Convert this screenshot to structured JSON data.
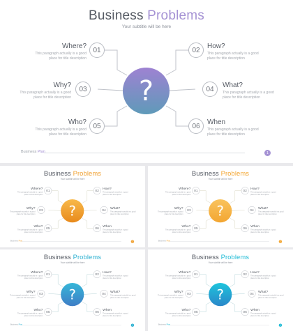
{
  "slides": [
    {
      "variant": "big",
      "color1": "#9e82d2",
      "color2": "#5f9ab9",
      "accent": "#a592d4",
      "line": "#bfc2c9"
    },
    {
      "variant": "s1",
      "color1": "#f8b94a",
      "color2": "#e88a1c",
      "accent": "#f0a234",
      "line": "#d4d6c4"
    },
    {
      "variant": "s2",
      "color1": "#f9c35d",
      "color2": "#f3a632",
      "accent": "#f3a632",
      "line": "#d8d5c0"
    },
    {
      "variant": "s3",
      "color1": "#36b6d8",
      "color2": "#3f7ec6",
      "accent": "#2fb2d2",
      "line": "#b9d4d8"
    },
    {
      "variant": "s4",
      "color1": "#1ec4dc",
      "color2": "#2a87c9",
      "accent": "#22bcd6",
      "line": "#b4d3d9"
    }
  ],
  "deck": {
    "title_a": "Business ",
    "title_b": "Problems",
    "subtitle": "Your subtitle will be here",
    "footer_a": "Business ",
    "footer_b": "Plan",
    "page": "1",
    "center_symbol": "?"
  },
  "items": [
    {
      "num": "01",
      "label": "Where?",
      "desc": "This paragraph  actually is a good place for title description"
    },
    {
      "num": "02",
      "label": "How?",
      "desc": "This paragraph  actually is a good place for title description"
    },
    {
      "num": "03",
      "label": "Why?",
      "desc": "This paragraph  actually is a good place for title description"
    },
    {
      "num": "04",
      "label": "What?",
      "desc": "This paragraph  actually is a good place for title description"
    },
    {
      "num": "05",
      "label": "Who?",
      "desc": "This paragraph  actually is a good place for title description"
    },
    {
      "num": "06",
      "label": "When",
      "desc": "This paragraph  actually is a good place for title description"
    }
  ]
}
